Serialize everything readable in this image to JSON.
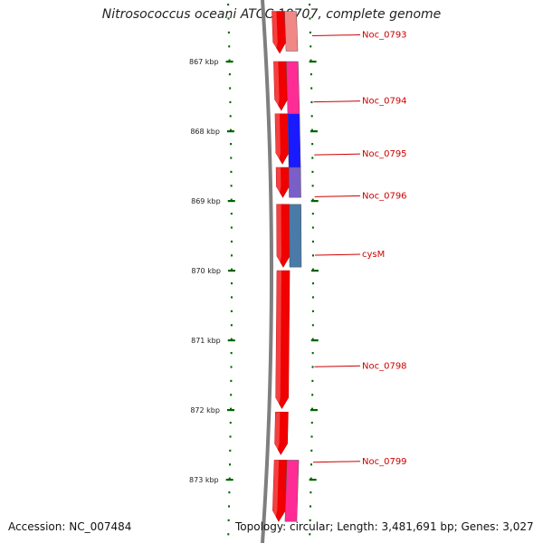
{
  "title": "Nitrosococcus oceani ATCC 19707, complete genome",
  "footer": {
    "accession": "Accession: NC_007484",
    "summary": "Topology: circular; Length: 3,481,691 bp; Genes: 3,027"
  },
  "scale": {
    "ticks": [
      {
        "label": "867 kbp",
        "kbp": 867
      },
      {
        "label": "868 kbp",
        "kbp": 868
      },
      {
        "label": "869 kbp",
        "kbp": 869
      },
      {
        "label": "870 kbp",
        "kbp": 870
      },
      {
        "label": "871 kbp",
        "kbp": 871
      },
      {
        "label": "872 kbp",
        "kbp": 872
      },
      {
        "label": "873 kbp",
        "kbp": 873
      }
    ]
  },
  "cds_track": [
    {
      "start": 866.28,
      "end": 866.88,
      "color": "#f00000"
    },
    {
      "start": 867.0,
      "end": 867.7,
      "color": "#f00000"
    },
    {
      "start": 867.75,
      "end": 868.47,
      "color": "#f00000"
    },
    {
      "start": 868.52,
      "end": 868.95,
      "color": "#f00000"
    },
    {
      "start": 869.05,
      "end": 869.95,
      "color": "#f00000"
    },
    {
      "start": 870.0,
      "end": 871.98,
      "color": "#f00000"
    },
    {
      "start": 872.03,
      "end": 872.64,
      "color": "#f00000"
    },
    {
      "start": 872.72,
      "end": 873.6,
      "color": "#f00000"
    }
  ],
  "genes": [
    {
      "label": "Noc_0793",
      "start": 866.28,
      "end": 866.85,
      "color": "#f08888",
      "label_kbp": 866.63
    },
    {
      "label": "Noc_0794",
      "start": 867.0,
      "end": 867.75,
      "color": "#ff2c96",
      "label_kbp": 867.58
    },
    {
      "label": "Noc_0795",
      "start": 867.75,
      "end": 868.52,
      "color": "#1a1aff",
      "label_kbp": 868.34
    },
    {
      "label": "Noc_0796",
      "start": 868.52,
      "end": 868.95,
      "color": "#7a5fc8",
      "label_kbp": 868.94
    },
    {
      "label": "cysM",
      "start": 869.05,
      "end": 869.95,
      "color": "#4a7aa8",
      "label_kbp": 869.78
    },
    {
      "label": "Noc_0798",
      "start": 870.0,
      "end": 872.0,
      "color": "#f00000",
      "label_kbp": 871.38,
      "no_bar": true
    },
    {
      "label": "Noc_0799",
      "start": 872.72,
      "end": 873.6,
      "color": "#ff2c96",
      "label_kbp": 872.75
    }
  ],
  "colors": {
    "backbone": "#7f7f7f",
    "ticks": "#006400",
    "label": "#cc0000"
  }
}
